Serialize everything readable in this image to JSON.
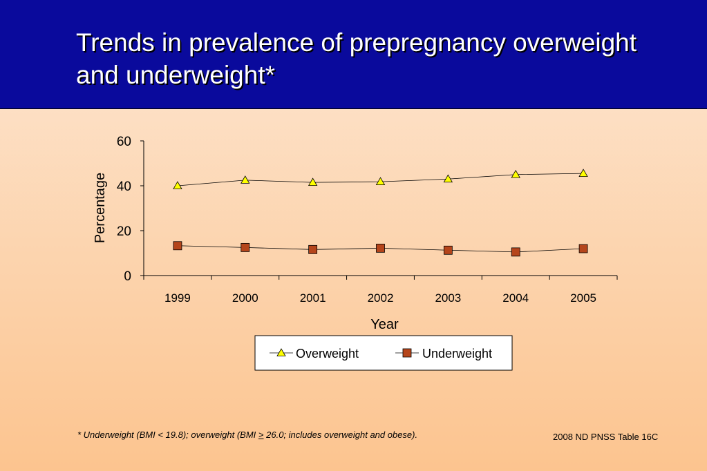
{
  "slide": {
    "title": "Trends in prevalence of prepregnancy overweight and underweight*",
    "footnote_part1": "*  Underweight  (BMI < 19.8); overweight (BMI ",
    "footnote_ge": ">",
    "footnote_part2": " 26.0; includes overweight and obese).",
    "source": "2008 ND PNSS Table 16C"
  },
  "colors": {
    "title_bar": "#0a0a9c",
    "overweight_marker": "#ffff00",
    "underweight_marker": "#b5451b"
  },
  "chart_data": {
    "type": "line",
    "xlabel": "Year",
    "ylabel": "Percentage",
    "categories": [
      "1999",
      "2000",
      "2001",
      "2002",
      "2003",
      "2004",
      "2005"
    ],
    "ylim": [
      0,
      60
    ],
    "yticks": [
      0,
      20,
      40,
      60
    ],
    "grid": false,
    "legend_position": "bottom",
    "series": [
      {
        "name": "Overweight",
        "marker": "triangle",
        "values": [
          40.0,
          42.5,
          41.5,
          41.8,
          43.0,
          45.0,
          45.5
        ]
      },
      {
        "name": "Underweight",
        "marker": "square",
        "values": [
          13.3,
          12.5,
          11.6,
          12.2,
          11.3,
          10.5,
          12.0
        ]
      }
    ]
  }
}
